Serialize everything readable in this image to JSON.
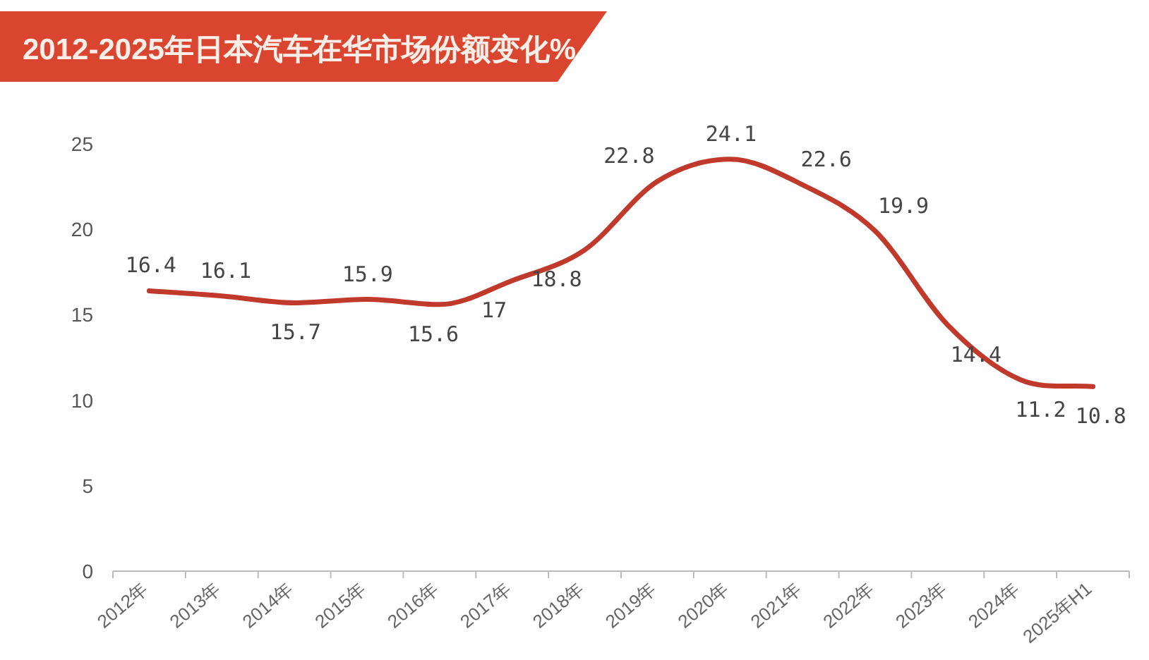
{
  "chart_data": {
    "type": "line",
    "title": "2012-2025年日本汽车在华市场份额变化%",
    "categories": [
      "2012年",
      "2013年",
      "2014年",
      "2015年",
      "2016年",
      "2017年",
      "2018年",
      "2019年",
      "2020年",
      "2021年",
      "2022年",
      "2023年",
      "2024年",
      "2025年H1"
    ],
    "series": [
      {
        "color": "#c0392b",
        "values": [
          16.4,
          16.1,
          15.7,
          15.9,
          15.6,
          17,
          18.8,
          22.8,
          24.1,
          22.6,
          19.9,
          14.4,
          11.2,
          10.8
        ]
      }
    ],
    "ylim": [
      0,
      25
    ],
    "yticks": [
      0,
      5,
      10,
      15,
      20,
      25
    ],
    "data_labels": true,
    "grid": false,
    "marker": "none",
    "line_style": "solid"
  }
}
